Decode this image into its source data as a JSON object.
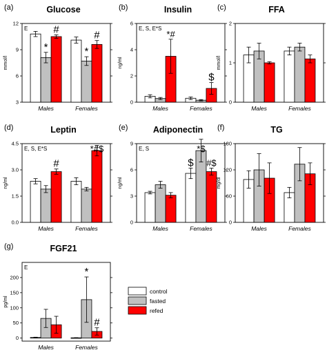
{
  "legend": {
    "items": [
      {
        "label": "control",
        "color": "#ffffff"
      },
      {
        "label": "fasted",
        "color": "#c0c0c0"
      },
      {
        "label": "refed",
        "color": "#ff0000"
      }
    ]
  },
  "chart_data": [
    {
      "letter": "(a)",
      "title": "Glucose",
      "type": "bar",
      "ylabel": "mmol/l",
      "ylim": [
        3,
        12
      ],
      "yticks": [
        "3",
        "6",
        "9",
        "12"
      ],
      "stat": "E",
      "categories": [
        "Males",
        "Females"
      ],
      "series": [
        {
          "name": "control",
          "values": [
            10.8,
            10.1
          ],
          "errors": [
            0.3,
            0.35
          ]
        },
        {
          "name": "fasted",
          "values": [
            8.1,
            7.7
          ],
          "errors": [
            0.6,
            0.5
          ]
        },
        {
          "name": "refed",
          "values": [
            10.5,
            9.6
          ],
          "errors": [
            0.2,
            0.45
          ]
        }
      ],
      "annotations": [
        {
          "text": "*",
          "category": 0,
          "series": 1
        },
        {
          "text": "#",
          "category": 0,
          "series": 2
        },
        {
          "text": "*",
          "category": 1,
          "series": 1
        },
        {
          "text": "#",
          "category": 1,
          "series": 2
        }
      ]
    },
    {
      "letter": "(b)",
      "title": "Insulin",
      "type": "bar",
      "ylabel": "ng/ml",
      "ylim": [
        0,
        6
      ],
      "yticks": [
        "0",
        "2",
        "4",
        "6"
      ],
      "stat": "E, S, E*S",
      "categories": [
        "Males",
        "Females"
      ],
      "series": [
        {
          "name": "control",
          "values": [
            0.45,
            0.3
          ],
          "errors": [
            0.12,
            0.1
          ]
        },
        {
          "name": "fasted",
          "values": [
            0.28,
            0.15
          ],
          "errors": [
            0.08,
            0.05
          ]
        },
        {
          "name": "refed",
          "values": [
            3.5,
            1.05
          ],
          "errors": [
            1.3,
            0.45
          ]
        }
      ],
      "annotations": [
        {
          "text": "*#",
          "category": 0,
          "series": 2
        },
        {
          "text": "$",
          "category": 1,
          "series": 2
        }
      ]
    },
    {
      "letter": "(c)",
      "title": "FFA",
      "type": "bar",
      "ylabel": "mmol/l",
      "ylim": [
        0,
        2
      ],
      "yticks": [
        "0",
        "1",
        "2"
      ],
      "stat": "",
      "categories": [
        "Males",
        "Females"
      ],
      "series": [
        {
          "name": "control",
          "values": [
            1.2,
            1.3
          ],
          "errors": [
            0.2,
            0.1
          ]
        },
        {
          "name": "fasted",
          "values": [
            1.3,
            1.4
          ],
          "errors": [
            0.2,
            0.1
          ]
        },
        {
          "name": "refed",
          "values": [
            1.0,
            1.1
          ],
          "errors": [
            0.03,
            0.1
          ]
        }
      ],
      "annotations": []
    },
    {
      "letter": "(d)",
      "title": "Leptin",
      "type": "bar",
      "ylabel": "ng/ml",
      "ylim": [
        0,
        4.5
      ],
      "yticks": [
        "0.0",
        "1.5",
        "3.0",
        "4.5"
      ],
      "stat": "E, S, E*S",
      "categories": [
        "Males",
        "Females"
      ],
      "series": [
        {
          "name": "control",
          "values": [
            2.35,
            2.35
          ],
          "errors": [
            0.15,
            0.2
          ]
        },
        {
          "name": "fasted",
          "values": [
            1.9,
            1.9
          ],
          "errors": [
            0.2,
            0.1
          ]
        },
        {
          "name": "refed",
          "values": [
            2.9,
            4.1
          ],
          "errors": [
            0.15,
            0.3
          ]
        }
      ],
      "annotations": [
        {
          "text": "#",
          "category": 0,
          "series": 2
        },
        {
          "text": "*#$",
          "category": 1,
          "series": 2
        }
      ]
    },
    {
      "letter": "(e)",
      "title": "Adiponectin",
      "type": "bar",
      "ylabel": "ng/ml",
      "ylim": [
        0,
        9
      ],
      "yticks": [
        "0",
        "3",
        "6",
        "9"
      ],
      "stat": "E, S",
      "categories": [
        "Males",
        "Females"
      ],
      "series": [
        {
          "name": "control",
          "values": [
            3.4,
            5.6
          ],
          "errors": [
            0.15,
            0.6
          ]
        },
        {
          "name": "fasted",
          "values": [
            4.3,
            8.2
          ],
          "errors": [
            0.4,
            1.3
          ]
        },
        {
          "name": "refed",
          "values": [
            3.1,
            5.8
          ],
          "errors": [
            0.3,
            0.4
          ]
        }
      ],
      "annotations": [
        {
          "text": "$",
          "category": 1,
          "series": 0
        },
        {
          "text": "*$",
          "category": 1,
          "series": 1
        },
        {
          "text": "#$",
          "category": 1,
          "series": 2
        }
      ]
    },
    {
      "letter": "(f)",
      "title": "TG",
      "type": "bar",
      "ylabel": "mg/dl",
      "ylim": [
        0,
        180
      ],
      "yticks": [
        "0",
        "60",
        "120",
        "180"
      ],
      "stat": "",
      "categories": [
        "Males",
        "Females"
      ],
      "series": [
        {
          "name": "control",
          "values": [
            98,
            68
          ],
          "errors": [
            20,
            12
          ]
        },
        {
          "name": "fasted",
          "values": [
            120,
            133
          ],
          "errors": [
            37,
            38
          ]
        },
        {
          "name": "refed",
          "values": [
            101,
            111
          ],
          "errors": [
            35,
            25
          ]
        }
      ],
      "annotations": []
    },
    {
      "letter": "(g)",
      "title": "FGF21",
      "type": "bar",
      "ylabel": "pg/ml",
      "ylim": [
        -10,
        250
      ],
      "yticks": [
        "0",
        "50",
        "100",
        "150",
        "200"
      ],
      "ytick_values": [
        0,
        50,
        100,
        150,
        200
      ],
      "stat": "E",
      "categories": [
        "Males",
        "Females"
      ],
      "series": [
        {
          "name": "control",
          "values": [
            2,
            1
          ],
          "errors": [
            1,
            0.5
          ]
        },
        {
          "name": "fasted",
          "values": [
            65,
            127
          ],
          "errors": [
            30,
            75
          ]
        },
        {
          "name": "refed",
          "values": [
            44,
            22
          ],
          "errors": [
            28,
            12
          ]
        }
      ],
      "annotations": [
        {
          "text": "*",
          "category": 1,
          "series": 1
        },
        {
          "text": "#",
          "category": 1,
          "series": 2
        }
      ]
    }
  ]
}
